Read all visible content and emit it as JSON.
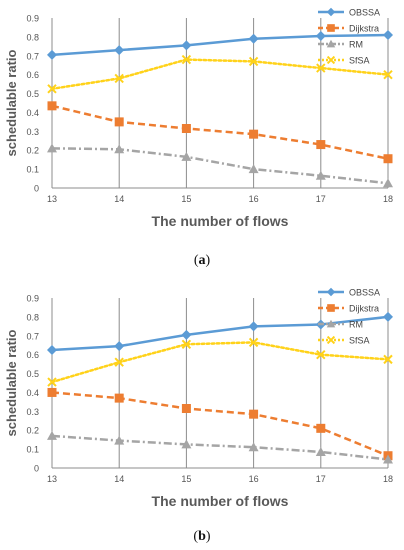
{
  "figure": {
    "panel_a_caption": "a",
    "panel_b_caption": "b"
  },
  "chart_data": [
    {
      "type": "line",
      "xlabel": "The number of flows",
      "ylabel": "schedulable ratio",
      "x": [
        13,
        14,
        15,
        16,
        17,
        18
      ],
      "ylim": [
        0,
        0.9
      ],
      "yticks": [
        "0",
        "0.1",
        "0.2",
        "0.3",
        "0.4",
        "0.5",
        "0.6",
        "0.7",
        "0.8",
        "0.9"
      ],
      "grid": "vertical",
      "legend_position": "top-right",
      "series": [
        {
          "name": "OBSSA",
          "values": [
            0.705,
            0.73,
            0.755,
            0.79,
            0.805,
            0.81
          ],
          "color": "#5b9bd5",
          "style": "solid",
          "marker": "diamond"
        },
        {
          "name": "Dijkstra",
          "values": [
            0.435,
            0.35,
            0.315,
            0.285,
            0.23,
            0.155
          ],
          "color": "#ed7d31",
          "style": "dashed",
          "marker": "square"
        },
        {
          "name": "RM",
          "values": [
            0.21,
            0.205,
            0.165,
            0.1,
            0.065,
            0.025
          ],
          "color": "#a5a5a5",
          "style": "dashdot",
          "marker": "triangle"
        },
        {
          "name": "SfSA",
          "values": [
            0.525,
            0.58,
            0.68,
            0.67,
            0.635,
            0.6
          ],
          "color": "#ffd21a",
          "style": "dotted",
          "marker": "x"
        }
      ]
    },
    {
      "type": "line",
      "xlabel": "The number of flows",
      "ylabel": "schedulable ratio",
      "x": [
        13,
        14,
        15,
        16,
        17,
        18
      ],
      "ylim": [
        0,
        0.9
      ],
      "yticks": [
        "0",
        "0.1",
        "0.2",
        "0.3",
        "0.4",
        "0.5",
        "0.6",
        "0.7",
        "0.8",
        "0.9"
      ],
      "grid": "vertical",
      "legend_position": "top-right",
      "series": [
        {
          "name": "OBSSA",
          "values": [
            0.625,
            0.645,
            0.705,
            0.75,
            0.76,
            0.8
          ],
          "color": "#5b9bd5",
          "style": "solid",
          "marker": "diamond"
        },
        {
          "name": "Dijkstra",
          "values": [
            0.4,
            0.37,
            0.315,
            0.285,
            0.21,
            0.065
          ],
          "color": "#ed7d31",
          "style": "dashed",
          "marker": "square"
        },
        {
          "name": "RM",
          "values": [
            0.17,
            0.145,
            0.125,
            0.11,
            0.085,
            0.045
          ],
          "color": "#a5a5a5",
          "style": "dashdot",
          "marker": "triangle"
        },
        {
          "name": "SfSA",
          "values": [
            0.455,
            0.56,
            0.655,
            0.665,
            0.6,
            0.575
          ],
          "color": "#ffd21a",
          "style": "dotted",
          "marker": "x"
        }
      ]
    }
  ]
}
